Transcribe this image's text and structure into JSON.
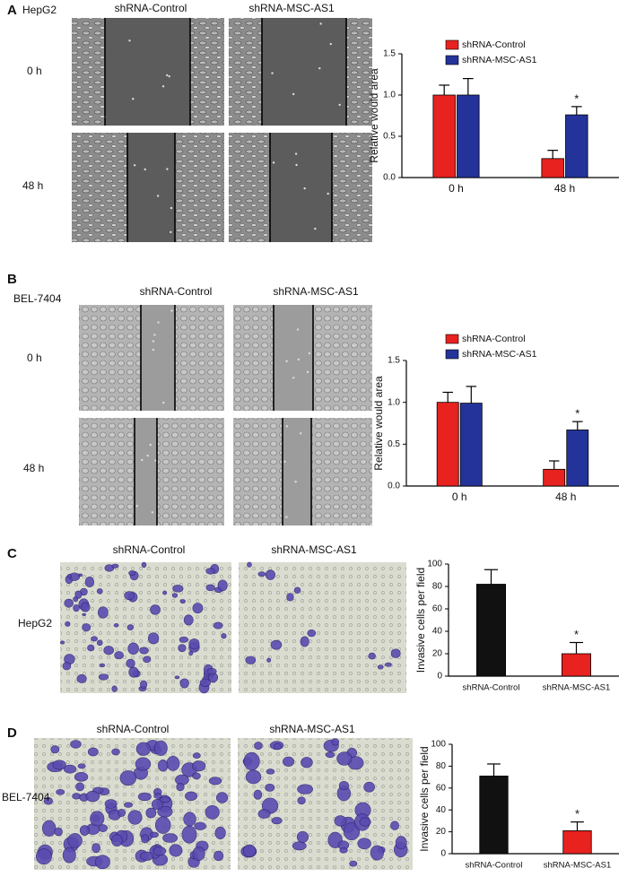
{
  "panels": [
    {
      "label": "A",
      "cell_line": "HepG2",
      "columns": [
        "shRNA-Control",
        "shRNA-MSC-AS1"
      ],
      "rows": [
        "0 h",
        "48 h"
      ]
    },
    {
      "label": "B",
      "cell_line": "BEL-7404",
      "columns": [
        "shRNA-Control",
        "shRNA-MSC-AS1"
      ],
      "rows": [
        "0 h",
        "48 h"
      ]
    },
    {
      "label": "C",
      "cell_line": "HepG2",
      "columns": [
        "shRNA-Control",
        "shRNA-MSC-AS1"
      ]
    },
    {
      "label": "D",
      "cell_line": "BEL-7404",
      "columns": [
        "shRNA-Control",
        "shRNA-MSC-AS1"
      ]
    }
  ],
  "chart_data": [
    {
      "type": "bar",
      "y_label": "Relative would area",
      "categories": [
        "0 h",
        "48 h"
      ],
      "series": [
        {
          "name": "shRNA-Control",
          "color": "#e8221f",
          "values": [
            1.0,
            0.23
          ],
          "errors": [
            0.12,
            0.1
          ]
        },
        {
          "name": "shRNA-MSC-AS1",
          "color": "#24339a",
          "values": [
            1.0,
            0.76
          ],
          "errors": [
            0.2,
            0.1
          ]
        }
      ],
      "ylim": [
        0,
        1.5
      ],
      "yticks": [
        {
          "value": 0,
          "label": "0.0"
        },
        {
          "value": 0.5,
          "label": "0.5"
        },
        {
          "value": 1,
          "label": "1.0"
        },
        {
          "value": 1.5,
          "label": "1.5"
        }
      ],
      "legend": "top",
      "annotation": "*"
    },
    {
      "type": "bar",
      "y_label": "Relative would area",
      "categories": [
        "0 h",
        "48 h"
      ],
      "series": [
        {
          "name": "shRNA-Control",
          "color": "#e8221f",
          "values": [
            1.0,
            0.2
          ],
          "errors": [
            0.12,
            0.1
          ]
        },
        {
          "name": "shRNA-MSC-AS1",
          "color": "#24339a",
          "values": [
            0.99,
            0.67
          ],
          "errors": [
            0.2,
            0.1
          ]
        }
      ],
      "ylim": [
        0,
        1.5
      ],
      "yticks": [
        {
          "value": 0,
          "label": "0.0"
        },
        {
          "value": 0.5,
          "label": "0.5"
        },
        {
          "value": 1,
          "label": "1.0"
        },
        {
          "value": 1.5,
          "label": "1.5"
        }
      ],
      "legend": "top",
      "annotation": "*"
    },
    {
      "type": "bar",
      "y_label": "Invasive cells per field",
      "categories": [
        "shRNA-Control",
        "shRNA-MSC-AS1"
      ],
      "values": [
        82,
        20
      ],
      "errors": [
        13,
        10
      ],
      "colors": [
        "#111111",
        "#e8221f"
      ],
      "ylim": [
        0,
        100
      ],
      "yticks": [
        0,
        20,
        40,
        60,
        80,
        100
      ],
      "annotation": "*"
    },
    {
      "type": "bar",
      "y_label": "Invasive cells per field",
      "categories": [
        "shRNA-Control",
        "shRNA-MSC-AS1"
      ],
      "values": [
        71,
        21
      ],
      "errors": [
        11,
        8
      ],
      "colors": [
        "#111111",
        "#e8221f"
      ],
      "ylim": [
        0,
        100
      ],
      "yticks": [
        0,
        20,
        40,
        60,
        80,
        100
      ],
      "annotation": "*"
    }
  ]
}
